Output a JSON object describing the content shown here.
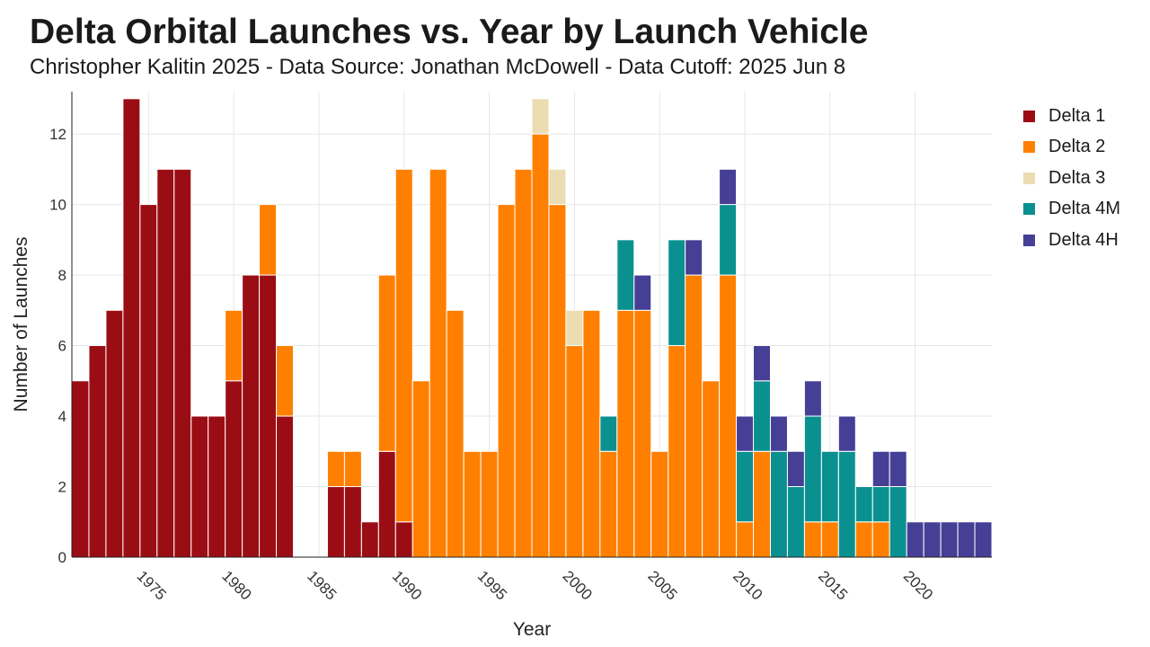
{
  "header": {
    "title": "Delta Orbital Launches vs. Year by Launch Vehicle",
    "subtitle": "Christopher Kalitin 2025 - Data Source: Jonathan McDowell - Data Cutoff: 2025 Jun 8"
  },
  "chart_data": {
    "type": "bar",
    "stacked": true,
    "title": "Delta Orbital Launches vs. Year by Launch Vehicle",
    "subtitle": "Christopher Kalitin 2025 - Data Source: Jonathan McDowell - Data Cutoff: 2025 Jun 8",
    "xlabel": "Year",
    "ylabel": "Number of Launches",
    "xlim": [
      1970.5,
      2024.5
    ],
    "ylim": [
      0,
      13.2
    ],
    "x_ticks": [
      1975,
      1980,
      1985,
      1990,
      1995,
      2000,
      2005,
      2010,
      2015,
      2020
    ],
    "y_ticks": [
      0,
      2,
      4,
      6,
      8,
      10,
      12
    ],
    "grid": true,
    "legend_position": "right",
    "categories": [
      1971,
      1972,
      1973,
      1974,
      1975,
      1976,
      1977,
      1978,
      1979,
      1980,
      1981,
      1982,
      1983,
      1984,
      1985,
      1986,
      1987,
      1988,
      1989,
      1990,
      1991,
      1992,
      1993,
      1994,
      1995,
      1996,
      1997,
      1998,
      1999,
      2000,
      2001,
      2002,
      2003,
      2004,
      2005,
      2006,
      2007,
      2008,
      2009,
      2010,
      2011,
      2012,
      2013,
      2014,
      2015,
      2016,
      2017,
      2018,
      2019,
      2020,
      2021,
      2022,
      2023,
      2024
    ],
    "series": [
      {
        "name": "Delta 1",
        "color": "#9b0d14",
        "values": [
          5,
          6,
          7,
          13,
          10,
          11,
          11,
          4,
          4,
          5,
          8,
          8,
          4,
          0,
          0,
          2,
          2,
          1,
          3,
          1,
          0,
          0,
          0,
          0,
          0,
          0,
          0,
          0,
          0,
          0,
          0,
          0,
          0,
          0,
          0,
          0,
          0,
          0,
          0,
          0,
          0,
          0,
          0,
          0,
          0,
          0,
          0,
          0,
          0,
          0,
          0,
          0,
          0,
          0
        ]
      },
      {
        "name": "Delta 2",
        "color": "#ff8000",
        "values": [
          0,
          0,
          0,
          0,
          0,
          0,
          0,
          0,
          0,
          2,
          0,
          2,
          2,
          0,
          0,
          1,
          1,
          0,
          5,
          10,
          5,
          11,
          7,
          3,
          3,
          10,
          11,
          12,
          10,
          6,
          7,
          3,
          7,
          7,
          3,
          6,
          8,
          5,
          8,
          1,
          3,
          0,
          0,
          1,
          1,
          0,
          1,
          1,
          0,
          0,
          0,
          0,
          0,
          0
        ]
      },
      {
        "name": "Delta 3",
        "color": "#ecdcb1",
        "values": [
          0,
          0,
          0,
          0,
          0,
          0,
          0,
          0,
          0,
          0,
          0,
          0,
          0,
          0,
          0,
          0,
          0,
          0,
          0,
          0,
          0,
          0,
          0,
          0,
          0,
          0,
          0,
          1,
          1,
          1,
          0,
          0,
          0,
          0,
          0,
          0,
          0,
          0,
          0,
          0,
          0,
          0,
          0,
          0,
          0,
          0,
          0,
          0,
          0,
          0,
          0,
          0,
          0,
          0
        ]
      },
      {
        "name": "Delta 4M",
        "color": "#0b9090",
        "values": [
          0,
          0,
          0,
          0,
          0,
          0,
          0,
          0,
          0,
          0,
          0,
          0,
          0,
          0,
          0,
          0,
          0,
          0,
          0,
          0,
          0,
          0,
          0,
          0,
          0,
          0,
          0,
          0,
          0,
          0,
          0,
          1,
          2,
          0,
          0,
          3,
          0,
          0,
          2,
          2,
          2,
          3,
          2,
          3,
          2,
          3,
          1,
          1,
          2,
          0,
          0,
          0,
          0,
          0
        ]
      },
      {
        "name": "Delta 4H",
        "color": "#453f96",
        "values": [
          0,
          0,
          0,
          0,
          0,
          0,
          0,
          0,
          0,
          0,
          0,
          0,
          0,
          0,
          0,
          0,
          0,
          0,
          0,
          0,
          0,
          0,
          0,
          0,
          0,
          0,
          0,
          0,
          0,
          0,
          0,
          0,
          0,
          1,
          0,
          0,
          1,
          0,
          1,
          1,
          1,
          1,
          1,
          1,
          0,
          1,
          0,
          1,
          1,
          1,
          1,
          1,
          1,
          1
        ]
      }
    ]
  }
}
